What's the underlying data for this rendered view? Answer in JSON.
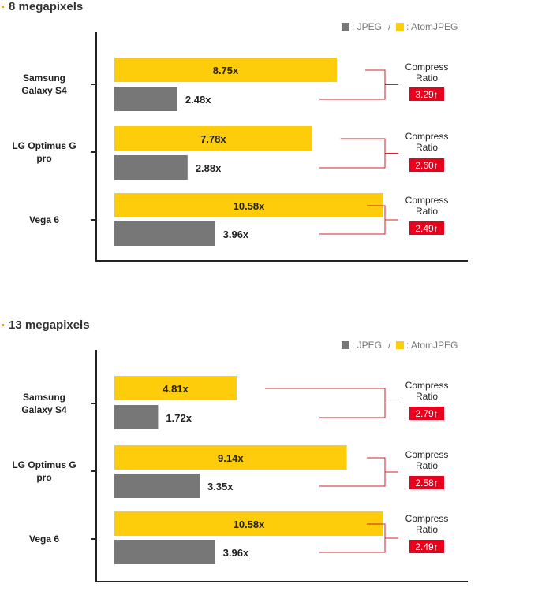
{
  "colors": {
    "jpeg": "#777777",
    "atomjpeg": "#fdcc0a",
    "ratio_badge": "#e8001c",
    "ratio_line": "#d2222a",
    "bullet": "#f3a01a",
    "axis": "#222222"
  },
  "legend": {
    "jpeg_label": ": JPEG",
    "separator": "/",
    "atomjpeg_label": ": AtomJPEG"
  },
  "chart_data": [
    {
      "type": "bar",
      "orientation": "horizontal",
      "title": "8 megapixels",
      "categories": [
        [
          "Samsung",
          "Galaxy S4"
        ],
        [
          "LG Optimus G",
          "pro"
        ],
        [
          "Vega 6"
        ]
      ],
      "series": [
        {
          "name": "AtomJPEG",
          "values": [
            8.75,
            7.78,
            10.58
          ],
          "labels": [
            "8.75x",
            "7.78x",
            "10.58x"
          ]
        },
        {
          "name": "JPEG",
          "values": [
            2.48,
            2.88,
            3.96
          ],
          "labels": [
            "2.48x",
            "2.88x",
            "3.96x"
          ]
        }
      ],
      "compress_ratio": {
        "label_lines": [
          "Compress",
          "Ratio"
        ],
        "values": [
          "3.29↑",
          "2.60↑",
          "2.49↑"
        ]
      },
      "xlim": [
        0,
        13.9
      ],
      "grid": false,
      "legend_position": "top-right"
    },
    {
      "type": "bar",
      "orientation": "horizontal",
      "title": "13 megapixels",
      "categories": [
        [
          "Samsung",
          "Galaxy S4"
        ],
        [
          "LG Optimus G",
          "pro"
        ],
        [
          "Vega 6"
        ]
      ],
      "series": [
        {
          "name": "AtomJPEG",
          "values": [
            4.81,
            9.14,
            10.58
          ],
          "labels": [
            "4.81x",
            "9.14x",
            "10.58x"
          ]
        },
        {
          "name": "JPEG",
          "values": [
            1.72,
            3.35,
            3.96
          ],
          "labels": [
            "1.72x",
            "3.35x",
            "3.96x"
          ]
        }
      ],
      "compress_ratio": {
        "label_lines": [
          "Compress",
          "Ratio"
        ],
        "values": [
          "2.79↑",
          "2.58↑",
          "2.49↑"
        ]
      },
      "xlim": [
        0,
        13.9
      ],
      "grid": false,
      "legend_position": "top-right"
    }
  ]
}
